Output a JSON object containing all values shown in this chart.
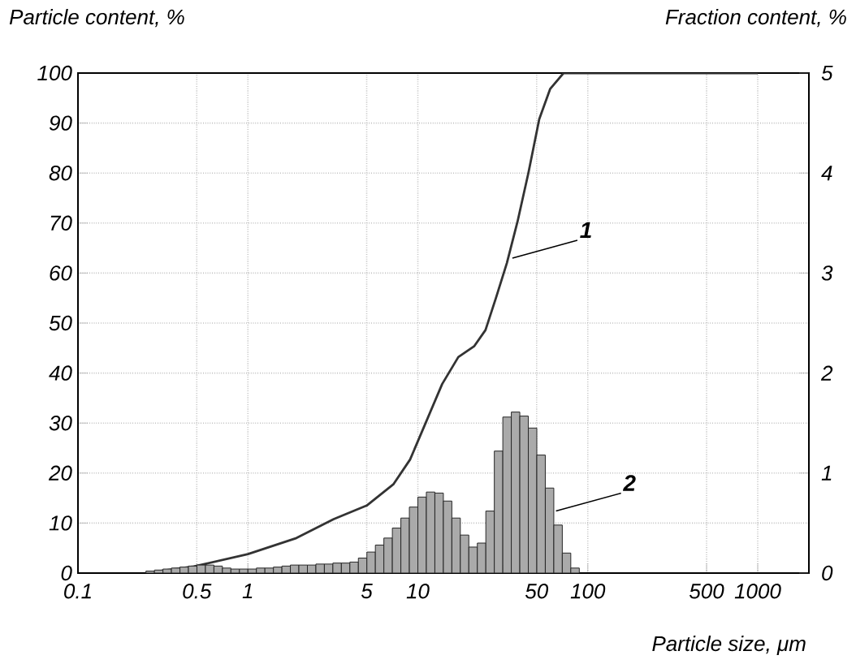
{
  "chart_data": {
    "type": "line",
    "xlabel": "Particle size, μm",
    "ylabel": "Particle content, %",
    "y2label": "Fraction content, %",
    "log": "x",
    "grid": true,
    "marker": "none",
    "xlim": [
      0.1,
      2000
    ],
    "xticks": [
      0.1,
      0.5,
      1,
      5,
      10,
      50,
      100,
      500,
      1000
    ],
    "ylim": [
      0,
      100
    ],
    "yticks": [
      0,
      10,
      20,
      30,
      40,
      50,
      60,
      70,
      80,
      90,
      100
    ],
    "y2lim": [
      0,
      5
    ],
    "y2ticks": [
      0,
      1,
      2,
      3,
      4,
      5
    ],
    "series": [
      {
        "color": "#333333",
        "x": [
          0.25,
          0.48,
          1,
          1.93,
          3.2,
          5,
          7.2,
          9,
          11.2,
          13.9,
          17.3,
          21.5,
          25,
          28.8,
          33.4,
          38.6,
          44.7,
          51.8,
          60,
          72,
          1000
        ],
        "values": [
          0,
          1.3,
          3.8,
          7,
          10.8,
          13.5,
          17.8,
          22.7,
          30.3,
          37.8,
          43.2,
          45.4,
          48.6,
          55,
          62,
          70.3,
          80,
          90.8,
          96.8,
          100,
          100
        ]
      },
      {
        "type": "histogram",
        "axis": "y2",
        "color": "#aaaaaa",
        "bins": [
          0.2512,
          0.2818,
          0.3162,
          0.3548,
          0.3981,
          0.4467,
          0.5012,
          0.5623,
          0.631,
          0.7079,
          0.7943,
          0.8913,
          1,
          1.122,
          1.259,
          1.413,
          1.585,
          1.778,
          1.995,
          2.239,
          2.512,
          2.818,
          3.162,
          3.548,
          3.981,
          4.467,
          5.012,
          5.623,
          6.31,
          7.079,
          7.943,
          8.913,
          10,
          11.22,
          12.59,
          14.13,
          15.85,
          17.78,
          19.95,
          22.39,
          25.12,
          28.18,
          31.62,
          35.48,
          39.81,
          44.67,
          50.12,
          56.23,
          63.1,
          70.79,
          79.43,
          89.13
        ],
        "values": [
          0.02,
          0.03,
          0.04,
          0.05,
          0.06,
          0.07,
          0.08,
          0.08,
          0.07,
          0.05,
          0.04,
          0.04,
          0.04,
          0.05,
          0.05,
          0.06,
          0.07,
          0.08,
          0.08,
          0.08,
          0.09,
          0.09,
          0.1,
          0.1,
          0.11,
          0.15,
          0.21,
          0.28,
          0.35,
          0.45,
          0.55,
          0.66,
          0.76,
          0.81,
          0.8,
          0.72,
          0.55,
          0.38,
          0.26,
          0.3,
          0.62,
          1.22,
          1.56,
          1.61,
          1.57,
          1.45,
          1.18,
          0.85,
          0.48,
          0.2,
          0.05
        ]
      }
    ],
    "annotations": [
      {
        "text": "1",
        "x": 36,
        "y": 63
      },
      {
        "text": "2",
        "x": 65,
        "y": 12.4
      }
    ]
  }
}
